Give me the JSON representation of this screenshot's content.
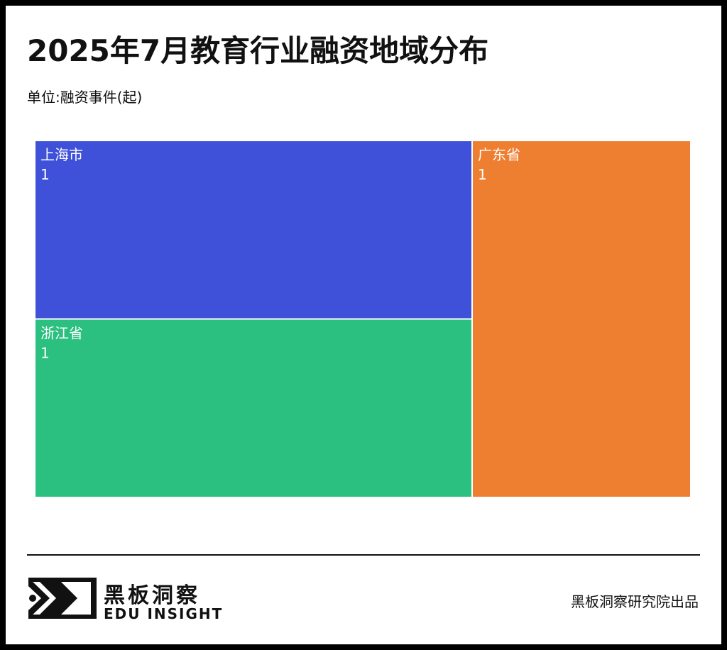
{
  "title": "2025年7月教育行业融资地域分布",
  "subtitle": "单位:融资事件(起)",
  "chart_data": {
    "type": "treemap",
    "title": "2025年7月教育行业融资地域分布",
    "unit": "单位:融资事件(起)",
    "items": [
      {
        "name": "上海市",
        "value": 1,
        "color": "#3f51d9"
      },
      {
        "name": "浙江省",
        "value": 1,
        "color": "#2bbf80"
      },
      {
        "name": "广东省",
        "value": 1,
        "color": "#ee7f31"
      }
    ],
    "label_color": "#ffffff"
  },
  "footer": {
    "brand_cn": "黑板洞察",
    "brand_en": "EDU INSIGHT",
    "source": "黑板洞察研究院出品"
  }
}
